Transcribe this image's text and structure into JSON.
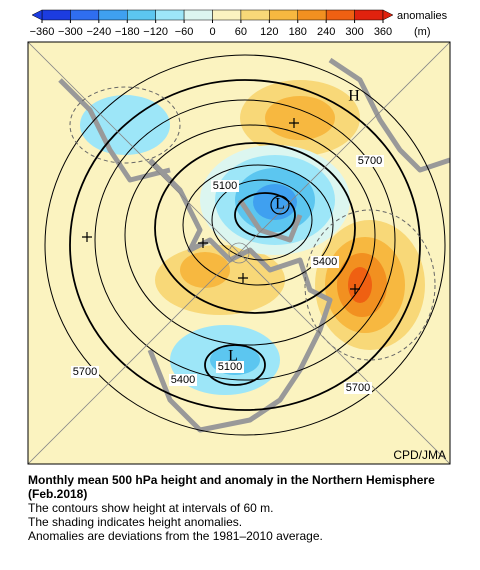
{
  "colorbar": {
    "ticks": [
      {
        "value": -360,
        "label": "−360"
      },
      {
        "value": -300,
        "label": "−300"
      },
      {
        "value": -240,
        "label": "−240"
      },
      {
        "value": -180,
        "label": "−180"
      },
      {
        "value": -120,
        "label": "−120"
      },
      {
        "value": -60,
        "label": "−60"
      },
      0,
      60,
      120,
      180,
      240,
      300,
      360
    ],
    "colors": [
      "#1c3ce0",
      "#2f6ef0",
      "#3fa0f0",
      "#5cc6f0",
      "#9de6f8",
      "#dcf6f0",
      "#fbf3c0",
      "#f8d878",
      "#f7b840",
      "#f29020",
      "#ef6012",
      "#e0220e"
    ],
    "label": "anomalies",
    "unit": "(m)"
  },
  "map": {
    "contour_labels": [
      "5100",
      "5700",
      "5400",
      "5700",
      "5400",
      "5100",
      "5700"
    ],
    "highs": [
      "H"
    ],
    "lows": [
      "L",
      "L"
    ],
    "credit": "CPD/JMA"
  },
  "caption": {
    "title": "Monthly mean 500 hPa height and anomaly in the Northern Hemisphere (Feb.2018)",
    "lines": [
      "The contours show height at intervals of 60 m.",
      "The shading indicates height anomalies.",
      "Anomalies are deviations from the 1981–2010 average."
    ]
  }
}
